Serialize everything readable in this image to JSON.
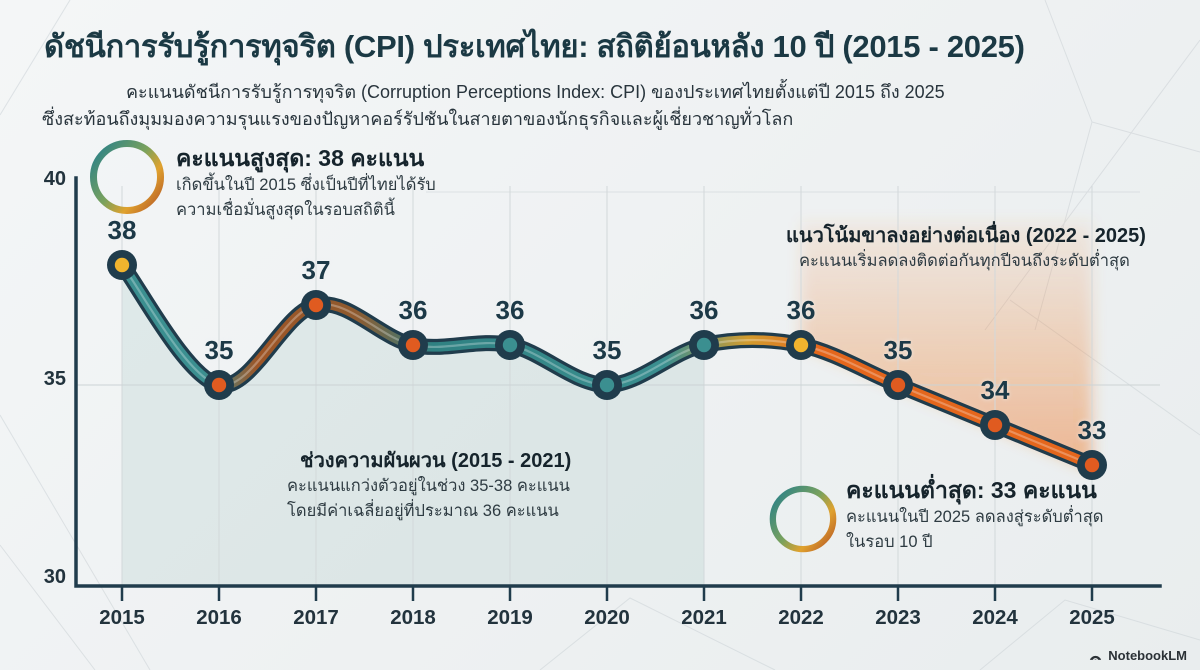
{
  "header": {
    "title": "ดัชนีการรับรู้การทุจริต (CPI) ประเทศไทย: สถิติย้อนหลัง 10 ปี (2015 - 2025)",
    "subtitle_line1": "คะแนนดัชนีการรับรู้การทุจริต (Corruption Perceptions Index: CPI) ของประเทศไทยตั้งแต่ปี 2015 ถึง 2025",
    "subtitle_line2": "ซึ่งสะท้อนถึงมุมมองความรุนแรงของปัญหาคอร์รัปชันในสายตาของนักธุรกิจและผู้เชี่ยวชาญทั่วโลก"
  },
  "chart_data": {
    "type": "line",
    "x": [
      2015,
      2016,
      2017,
      2018,
      2019,
      2020,
      2021,
      2022,
      2023,
      2024,
      2025
    ],
    "series": [
      {
        "name": "CPI score of Thailand",
        "values": [
          38,
          35,
          37,
          36,
          36,
          35,
          36,
          36,
          35,
          34,
          33
        ]
      }
    ],
    "ylim": [
      30,
      40
    ],
    "yticks": [
      "40",
      "35",
      "30"
    ],
    "grid": true,
    "legend": "none",
    "highlight_regions": [
      {
        "name": "volatility-area",
        "from": 2015,
        "to": 2021,
        "style": "teal-fill-under-line"
      },
      {
        "name": "decline-area",
        "from": 2022,
        "to": 2025,
        "style": "orange-glow"
      }
    ],
    "colors": {
      "navy": "#203c4c",
      "teal": "#3b8f90",
      "teal_dark": "#2f8182",
      "orange": "#e4661c",
      "yellow": "#f1b42e",
      "brown": "#9e5526",
      "brown2": "#8f5a2e",
      "gold": "#d29c2e",
      "grid": "#d2d8da",
      "teal_area": "rgba(104,160,156,0.13)",
      "orange_area_strong": "rgba(238,120,40,0.48)",
      "orange_area_faint": "rgba(238,135,60,0.08)"
    },
    "point_colors": [
      "#f1b42e",
      "#e05b20",
      "#e05b20",
      "#e05b20",
      "#3b8f90",
      "#3b8f90",
      "#3b8f90",
      "#f1b42e",
      "#e05b20",
      "#e05b20",
      "#e05b20"
    ]
  },
  "annotations": {
    "highest": {
      "title": "คะแนนสูงสุด: 38 คะแนน",
      "line1": "เกิดขึ้นในปี 2015 ซึ่งเป็นปีที่ไทยได้รับ",
      "line2": "ความเชื่อมั่นสูงสุดในรอบสถิตินี้"
    },
    "trend": {
      "title": "แนวโน้มขาลงอย่างต่อเนื่อง (2022 - 2025)",
      "line1": "คะแนนเริ่มลดลงติดต่อกันทุกปีจนถึงระดับต่ำสุด"
    },
    "volatility": {
      "title": "ช่วงความผันผวน (2015 - 2021)",
      "line1": "คะแนนแกว่งตัวอยู่ในช่วง 35-38 คะแนน",
      "line2": "โดยมีค่าเฉลี่ยอยู่ที่ประมาณ 36 คะแนน"
    },
    "lowest": {
      "title": "คะแนนต่ำสุด: 33 คะแนน",
      "line1": "คะแนนในปี 2025 ลดลงสู่ระดับต่ำสุด",
      "line2": "ในรอบ 10 ปี"
    }
  },
  "watermark": {
    "label": "NotebookLM"
  }
}
